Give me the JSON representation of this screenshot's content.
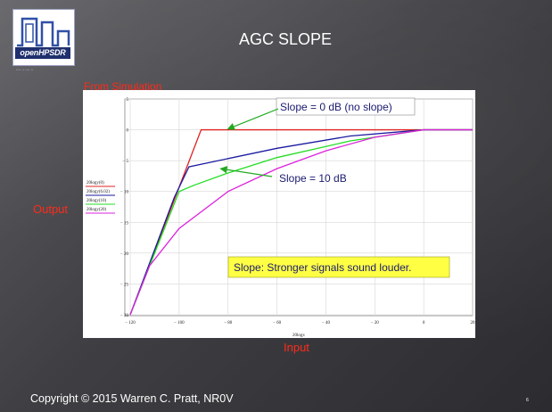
{
  "slide": {
    "title": "AGC SLOPE",
    "logo_text": "openHPSDR",
    "logo_subtext": "•••• •• •••• ••",
    "from_simulation_label": "From Simulation",
    "output_label": "Output",
    "input_label": "Input",
    "footer": "Copyright © 2015 Warren C. Pratt, NR0V",
    "slide_number": "6"
  },
  "chart_data": {
    "type": "line",
    "xlabel": "20logx",
    "ylabel": "",
    "xlim": [
      -120,
      20
    ],
    "ylim": [
      -30,
      5
    ],
    "xticks": [
      -120,
      -100,
      -80,
      -60,
      -40,
      -20,
      0,
      20
    ],
    "yticks": [
      -30,
      -25,
      -20,
      -15,
      -10,
      -5,
      0,
      5
    ],
    "grid": true,
    "legend_position": "left",
    "series": [
      {
        "name": "20logy(0)",
        "color": "#e02020",
        "points": [
          [
            -120,
            -30
          ],
          [
            -91,
            0
          ],
          [
            0,
            0
          ],
          [
            20,
            0
          ]
        ]
      },
      {
        "name": "20logy(6.02)",
        "color": "#1a1aa0",
        "points": [
          [
            -120,
            -30
          ],
          [
            -102,
            -11
          ],
          [
            -96,
            -6
          ],
          [
            -90,
            -5.5
          ],
          [
            -60,
            -3
          ],
          [
            -30,
            -1
          ],
          [
            0,
            0
          ],
          [
            20,
            0
          ]
        ]
      },
      {
        "name": "20logy(10)",
        "color": "#22dd22",
        "points": [
          [
            -120,
            -30
          ],
          [
            -110,
            -20
          ],
          [
            -100,
            -10
          ],
          [
            -94,
            -9
          ],
          [
            -80,
            -7
          ],
          [
            -60,
            -4.5
          ],
          [
            -30,
            -1.8
          ],
          [
            0,
            0
          ],
          [
            20,
            0
          ]
        ]
      },
      {
        "name": "20logy(20)",
        "color": "#dd22dd",
        "points": [
          [
            -120,
            -30
          ],
          [
            -112,
            -22
          ],
          [
            -100,
            -16
          ],
          [
            -90,
            -13
          ],
          [
            -80,
            -10
          ],
          [
            -60,
            -6.3
          ],
          [
            -40,
            -3.4
          ],
          [
            -20,
            -1.2
          ],
          [
            0,
            0
          ],
          [
            20,
            0
          ]
        ]
      }
    ],
    "annotations": [
      {
        "id": "slope0",
        "text": "Slope = 0 dB (no slope)",
        "arrow_to": [
          -80,
          0
        ],
        "arrow_color": "#22aa22"
      },
      {
        "id": "slope10",
        "text": "Slope = 10 dB",
        "arrow_to": [
          -83,
          -6.3
        ],
        "arrow_color": "#22aa22"
      },
      {
        "id": "stronger",
        "text": "Slope:  Stronger signals sound louder."
      }
    ]
  }
}
